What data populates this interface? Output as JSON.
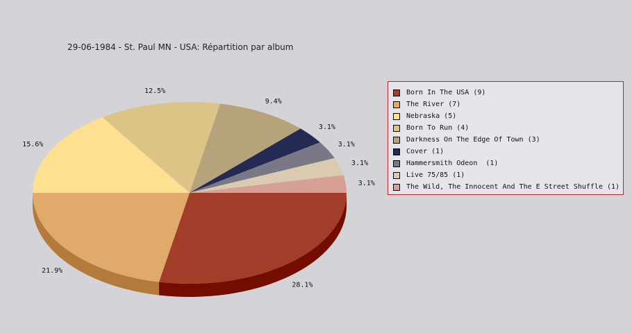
{
  "chart_data": {
    "type": "pie",
    "title": "29-06-1984 - St. Paul MN - USA:  Répartition par album",
    "legend_position": "right",
    "slices": [
      {
        "label": "Born In The USA (9)",
        "value": 9,
        "percent_label": "28.1%",
        "color": "#a13d28",
        "side_color": "#740d00"
      },
      {
        "label": "The River (7)",
        "value": 7,
        "percent_label": "21.9%",
        "color": "#e1aa6b",
        "side_color": "#b47a3b"
      },
      {
        "label": "Nebraska (5)",
        "value": 5,
        "percent_label": "15.6%",
        "color": "#ffdf90",
        "side_color": "#d2af60"
      },
      {
        "label": "Born To Run (4)",
        "value": 4,
        "percent_label": "12.5%",
        "color": "#dcc487",
        "side_color": "#af9457"
      },
      {
        "label": "Darkness On The Edge Of Town (3)",
        "value": 3,
        "percent_label": "9.4%",
        "color": "#b6a37c",
        "side_color": "#89734c"
      },
      {
        "label": "Cover (1)",
        "value": 1,
        "percent_label": "3.1%",
        "color": "#252a55",
        "side_color": "#000025"
      },
      {
        "label": "Hammersmith Odeon  (1)",
        "value": 1,
        "percent_label": "3.1%",
        "color": "#7a7886",
        "side_color": "#4d4856"
      },
      {
        "label": "Live 75/85 (1)",
        "value": 1,
        "percent_label": "3.1%",
        "color": "#d9cab0",
        "side_color": "#ac9a80"
      },
      {
        "label": "The Wild, The Innocent And The E Street Shuffle (1)",
        "value": 1,
        "percent_label": "3.1%",
        "color": "#d79f96",
        "side_color": "#aa6f66"
      }
    ]
  }
}
